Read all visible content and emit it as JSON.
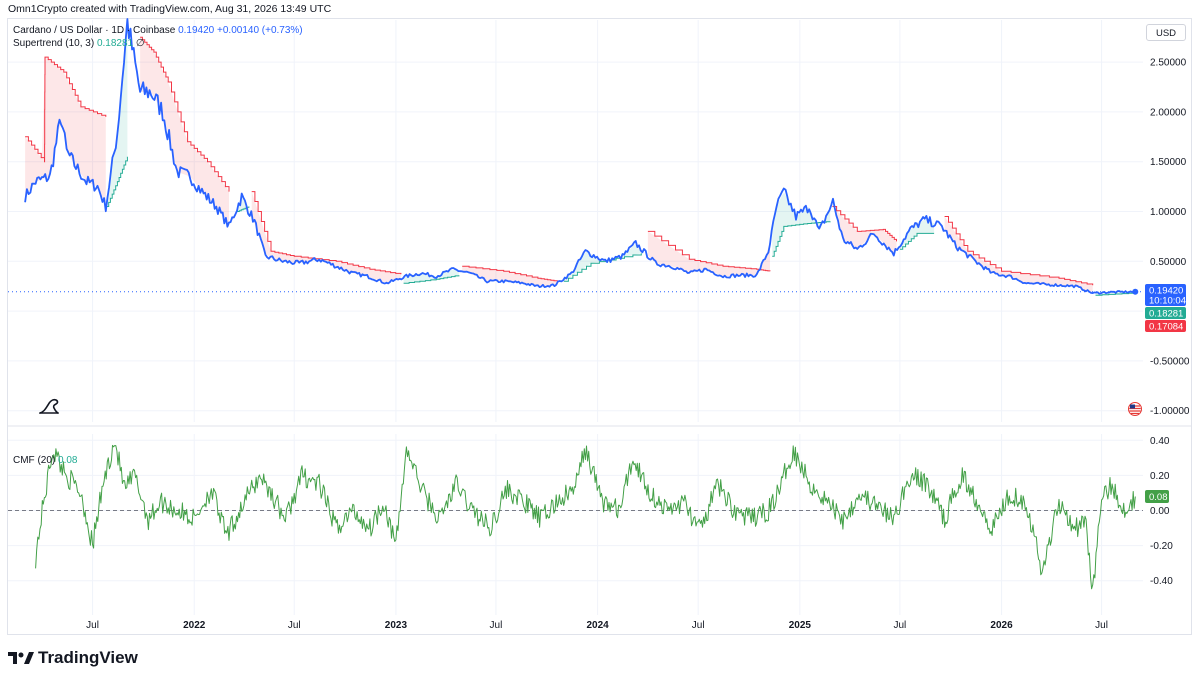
{
  "credit": "Omn1Crypto created with TradingView.com, Aug 31, 2026 13:49 UTC",
  "legend": {
    "symbol": "Cardano / US Dollar · 1D · Coinbase",
    "price": "0.19420",
    "change": "+0.00140 (+0.73%)",
    "supertrend_label": "Supertrend (10, 3)",
    "supertrend_value": "0.18281",
    "supertrend_icon": "∅",
    "cmf_label": "CMF (20)",
    "cmf_value": "0.08"
  },
  "currency": "USD",
  "brand": "TradingView",
  "colors": {
    "price_line": "#2962ff",
    "supertrend_up": "#22ab94",
    "supertrend_down": "#f23645",
    "fill_down": "rgba(242,54,69,0.12)",
    "fill_up": "rgba(34,171,148,0.12)",
    "cmf_line": "#43a047",
    "grid": "#f0f3fa"
  },
  "chart_data": [
    {
      "type": "line",
      "title": "Cardano / US Dollar · 1D · Coinbase",
      "x_ticks": [
        "Jul",
        "2022",
        "Jul",
        "2023",
        "Jul",
        "2024",
        "Jul",
        "2025",
        "Jul",
        "2026",
        "Jul"
      ],
      "y_ticks": [
        "2.50000",
        "2.00000",
        "1.50000",
        "1.00000",
        "0.50000",
        "-0.50000",
        "-1.00000"
      ],
      "ylim": [
        -1.0,
        2.5
      ],
      "series": [
        {
          "name": "ADA/USD",
          "x": [
            "2021-03-01",
            "2021-03-20",
            "2021-04-15",
            "2021-05-05",
            "2021-05-15",
            "2021-06-01",
            "2021-06-20",
            "2021-07-10",
            "2021-07-25",
            "2021-08-15",
            "2021-09-02",
            "2021-09-25",
            "2021-10-15",
            "2021-11-05",
            "2021-12-01",
            "2021-12-25",
            "2022-01-15",
            "2022-02-10",
            "2022-03-05",
            "2022-03-28",
            "2022-04-20",
            "2022-05-10",
            "2022-06-10",
            "2022-07-10",
            "2022-08-15",
            "2022-09-15",
            "2022-10-15",
            "2022-11-10",
            "2022-12-15",
            "2023-01-20",
            "2023-02-15",
            "2023-03-15",
            "2023-04-15",
            "2023-05-15",
            "2023-06-15",
            "2023-07-15",
            "2023-08-20",
            "2023-09-15",
            "2023-10-15",
            "2023-11-15",
            "2023-12-10",
            "2024-01-15",
            "2024-02-15",
            "2024-03-10",
            "2024-04-15",
            "2024-05-15",
            "2024-06-15",
            "2024-07-15",
            "2024-08-15",
            "2024-09-15",
            "2024-10-15",
            "2024-11-05",
            "2024-11-20",
            "2024-12-03",
            "2024-12-25",
            "2025-01-18",
            "2025-02-05",
            "2025-03-02",
            "2025-03-20",
            "2025-04-15",
            "2025-05-15",
            "2025-06-20",
            "2025-07-20",
            "2025-08-15",
            "2025-09-15",
            "2025-10-11",
            "2025-11-15",
            "2025-12-15",
            "2026-01-15",
            "2026-02-15",
            "2026-03-15",
            "2026-04-15",
            "2026-05-15",
            "2026-06-15",
            "2026-07-15",
            "2026-08-31"
          ],
          "values": [
            1.15,
            1.3,
            1.35,
            1.95,
            1.6,
            1.45,
            1.3,
            1.25,
            1.05,
            1.8,
            2.9,
            2.2,
            2.2,
            2.0,
            1.4,
            1.35,
            1.2,
            1.05,
            0.85,
            1.15,
            0.9,
            0.55,
            0.5,
            0.48,
            0.52,
            0.45,
            0.38,
            0.35,
            0.28,
            0.35,
            0.38,
            0.35,
            0.42,
            0.38,
            0.3,
            0.3,
            0.28,
            0.25,
            0.26,
            0.38,
            0.6,
            0.5,
            0.55,
            0.68,
            0.48,
            0.45,
            0.38,
            0.42,
            0.35,
            0.36,
            0.36,
            0.6,
            1.05,
            1.2,
            0.95,
            1.05,
            0.8,
            1.1,
            0.72,
            0.62,
            0.78,
            0.58,
            0.82,
            0.92,
            0.85,
            0.65,
            0.5,
            0.38,
            0.35,
            0.28,
            0.27,
            0.26,
            0.25,
            0.18,
            0.19,
            0.1942
          ]
        },
        {
          "name": "Supertrend (10, 3)",
          "last_value": 0.18281,
          "segments": [
            {
              "dir": "down",
              "x": [
                "2021-03-01",
                "2021-04-05",
                "2021-04-06",
                "2021-05-10",
                "2021-06-10",
                "2021-07-25"
              ],
              "values": [
                1.75,
                1.5,
                2.55,
                2.4,
                2.05,
                1.95
              ]
            },
            {
              "dir": "up",
              "x": [
                "2021-07-27",
                "2021-08-15",
                "2021-09-02"
              ],
              "values": [
                1.05,
                1.3,
                1.55
              ]
            },
            {
              "dir": "down",
              "x": [
                "2021-09-25",
                "2021-10-20",
                "2021-11-15",
                "2021-12-20",
                "2022-01-25",
                "2022-03-05"
              ],
              "values": [
                2.75,
                2.6,
                2.3,
                1.7,
                1.5,
                1.2
              ]
            },
            {
              "dir": "up",
              "x": [
                "2022-03-20",
                "2022-04-10"
              ],
              "values": [
                1.0,
                1.05
              ]
            },
            {
              "dir": "down",
              "x": [
                "2022-04-15",
                "2022-05-20",
                "2022-07-01",
                "2022-09-15",
                "2022-11-15",
                "2023-01-10"
              ],
              "values": [
                1.2,
                0.6,
                0.55,
                0.5,
                0.42,
                0.37
              ]
            },
            {
              "dir": "up",
              "x": [
                "2023-01-15",
                "2023-03-15",
                "2023-04-25"
              ],
              "values": [
                0.28,
                0.32,
                0.36
              ]
            },
            {
              "dir": "down",
              "x": [
                "2023-05-01",
                "2023-07-15",
                "2023-09-15",
                "2023-10-20"
              ],
              "values": [
                0.45,
                0.4,
                0.33,
                0.3
              ]
            },
            {
              "dir": "up",
              "x": [
                "2023-11-01",
                "2023-12-20",
                "2024-03-20"
              ],
              "values": [
                0.3,
                0.48,
                0.58
              ]
            },
            {
              "dir": "down",
              "x": [
                "2024-04-01",
                "2024-06-15",
                "2024-08-15",
                "2024-10-15",
                "2024-11-08"
              ],
              "values": [
                0.8,
                0.52,
                0.45,
                0.42,
                0.4
              ]
            },
            {
              "dir": "up",
              "x": [
                "2024-11-12",
                "2024-12-03",
                "2025-01-15",
                "2025-02-25"
              ],
              "values": [
                0.55,
                0.85,
                0.88,
                0.9
              ]
            },
            {
              "dir": "down",
              "x": [
                "2025-03-01",
                "2025-04-15",
                "2025-06-01",
                "2025-06-25"
              ],
              "values": [
                1.05,
                0.8,
                0.82,
                0.7
              ]
            },
            {
              "dir": "up",
              "x": [
                "2025-07-01",
                "2025-08-01",
                "2025-09-01"
              ],
              "values": [
                0.62,
                0.78,
                0.78
              ]
            },
            {
              "dir": "down",
              "x": [
                "2025-09-20",
                "2025-11-01",
                "2026-01-01",
                "2026-04-15",
                "2026-06-15"
              ],
              "values": [
                0.95,
                0.6,
                0.4,
                0.33,
                0.26
              ]
            },
            {
              "dir": "up",
              "x": [
                "2026-06-20",
                "2026-08-31"
              ],
              "values": [
                0.16,
                0.18281
              ]
            }
          ]
        }
      ],
      "price_tags": [
        {
          "label": "0.19420",
          "sub": "10:10:04",
          "color": "#2962ff"
        },
        {
          "label": "0.18281",
          "color": "#22ab94"
        },
        {
          "label": "0.17084",
          "color": "#f23645"
        }
      ]
    },
    {
      "type": "line",
      "title": "CMF (20)",
      "y_ticks": [
        "0.40",
        "0.20",
        "0.00",
        "-0.20",
        "-0.40"
      ],
      "ylim": [
        -0.5,
        0.42
      ],
      "series": [
        {
          "name": "CMF (20)",
          "x": [
            "2021-03-20",
            "2021-04-01",
            "2021-04-20",
            "2021-05-15",
            "2021-06-10",
            "2021-07-01",
            "2021-07-20",
            "2021-08-10",
            "2021-08-28",
            "2021-09-15",
            "2021-10-10",
            "2021-11-01",
            "2021-12-01",
            "2022-01-01",
            "2022-02-01",
            "2022-03-01",
            "2022-04-01",
            "2022-05-01",
            "2022-05-20",
            "2022-06-15",
            "2022-07-15",
            "2022-08-15",
            "2022-09-15",
            "2022-10-15",
            "2022-11-15",
            "2022-12-10",
            "2023-01-01",
            "2023-01-20",
            "2023-02-20",
            "2023-03-20",
            "2023-04-20",
            "2023-05-20",
            "2023-06-20",
            "2023-07-20",
            "2023-08-20",
            "2023-09-20",
            "2023-10-20",
            "2023-11-20",
            "2023-12-10",
            "2024-01-10",
            "2024-02-10",
            "2024-03-05",
            "2024-04-05",
            "2024-05-05",
            "2024-06-05",
            "2024-07-05",
            "2024-08-05",
            "2024-09-05",
            "2024-10-05",
            "2024-11-05",
            "2024-11-25",
            "2024-12-20",
            "2025-01-20",
            "2025-02-20",
            "2025-03-20",
            "2025-04-20",
            "2025-05-20",
            "2025-06-20",
            "2025-07-20",
            "2025-08-20",
            "2025-09-20",
            "2025-10-20",
            "2025-11-20",
            "2025-12-15",
            "2026-01-15",
            "2026-02-15",
            "2026-03-15",
            "2026-04-15",
            "2026-05-15",
            "2026-06-01",
            "2026-06-15",
            "2026-07-01",
            "2026-07-20",
            "2026-08-10",
            "2026-08-31"
          ],
          "values": [
            -0.27,
            0.0,
            0.35,
            0.2,
            0.1,
            -0.2,
            0.15,
            0.4,
            0.12,
            0.2,
            -0.05,
            0.05,
            0.0,
            -0.05,
            0.12,
            -0.15,
            0.05,
            0.2,
            0.1,
            -0.05,
            0.2,
            0.15,
            -0.1,
            0.0,
            -0.1,
            0.05,
            -0.2,
            0.35,
            0.1,
            -0.05,
            0.15,
            0.0,
            -0.1,
            0.12,
            0.05,
            -0.05,
            0.05,
            0.12,
            0.35,
            0.05,
            0.0,
            0.3,
            0.1,
            0.0,
            0.05,
            -0.12,
            0.15,
            0.0,
            -0.05,
            0.0,
            0.12,
            0.35,
            0.15,
            0.05,
            -0.05,
            0.1,
            0.02,
            -0.05,
            0.2,
            0.15,
            -0.05,
            0.2,
            0.05,
            -0.1,
            0.1,
            0.05,
            -0.35,
            0.05,
            -0.1,
            -0.05,
            -0.45,
            0.05,
            0.15,
            0.0,
            0.08
          ]
        }
      ],
      "value_tag": {
        "label": "0.08",
        "color": "#43a047"
      }
    }
  ]
}
